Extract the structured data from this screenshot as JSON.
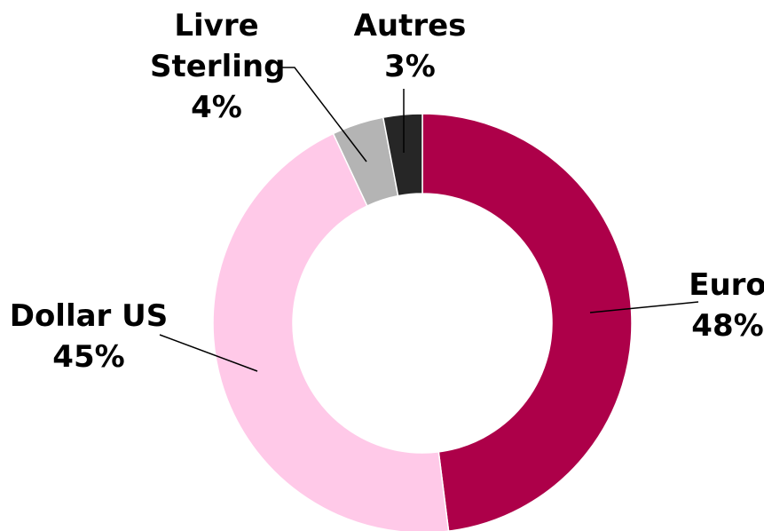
{
  "chart_data": {
    "type": "donut",
    "categories": [
      "Euro",
      "Dollar US",
      "Livre Sterling",
      "Autres"
    ],
    "values": [
      48,
      45,
      4,
      3
    ],
    "value_labels": [
      "48%",
      "45%",
      "4%",
      "3%"
    ],
    "colors": [
      "#ad0049",
      "#ffc9e8",
      "#b4b4b4",
      "#262626"
    ]
  }
}
